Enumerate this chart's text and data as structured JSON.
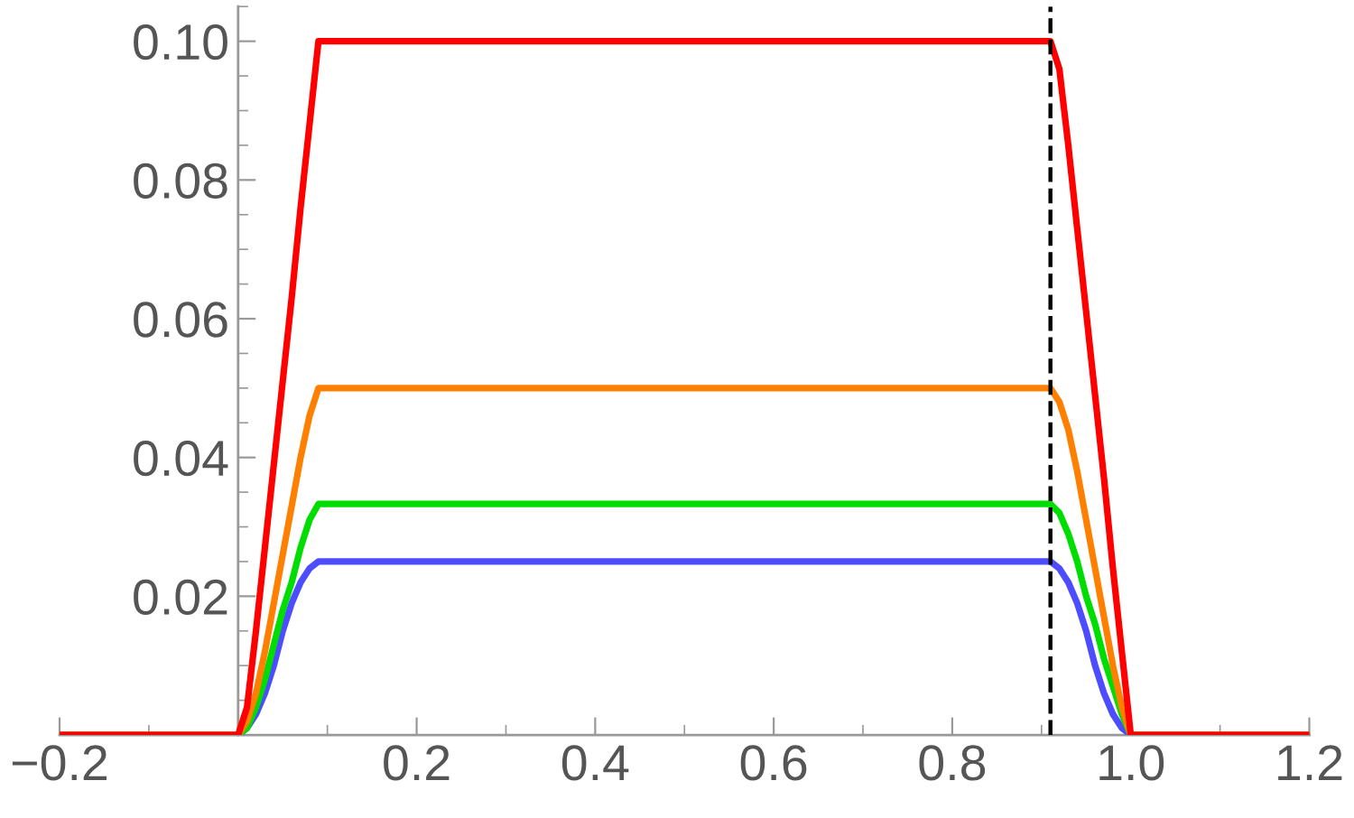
{
  "chart_data": {
    "type": "line",
    "x": [
      -0.2,
      0,
      0.01,
      0.02,
      0.03,
      0.04,
      0.05,
      0.06,
      0.07,
      0.08,
      0.09,
      0.91,
      0.92,
      0.93,
      0.94,
      0.95,
      0.96,
      0.97,
      0.98,
      0.99,
      1.0,
      1.2
    ],
    "series": [
      {
        "color": "#4d4dff",
        "values": [
          0,
          0,
          0.001,
          0.003,
          0.006,
          0.01,
          0.015,
          0.019,
          0.022,
          0.024,
          0.025,
          0.025,
          0.024,
          0.022,
          0.019,
          0.015,
          0.01,
          0.006,
          0.003,
          0.001,
          0,
          0
        ]
      },
      {
        "color": "#00dd00",
        "values": [
          0,
          0,
          0.001,
          0.004,
          0.008,
          0.013,
          0.018,
          0.022,
          0.027,
          0.031,
          0.0333,
          0.0333,
          0.032,
          0.029,
          0.025,
          0.02,
          0.016,
          0.011,
          0.007,
          0.003,
          0,
          0
        ]
      },
      {
        "color": "#ff8000",
        "values": [
          0,
          0,
          0.002,
          0.006,
          0.012,
          0.019,
          0.026,
          0.033,
          0.04,
          0.046,
          0.05,
          0.05,
          0.048,
          0.044,
          0.038,
          0.031,
          0.024,
          0.017,
          0.01,
          0.004,
          0,
          0
        ]
      },
      {
        "color": "#ff0000",
        "values": [
          0,
          0,
          0.004,
          0.015,
          0.027,
          0.039,
          0.051,
          0.063,
          0.076,
          0.088,
          0.1,
          0.1,
          0.096,
          0.085,
          0.073,
          0.061,
          0.049,
          0.037,
          0.024,
          0.012,
          0,
          0
        ]
      }
    ],
    "xlim": [
      -0.2,
      1.2
    ],
    "ylim": [
      0,
      0.105
    ],
    "xticks": [
      {
        "value": -0.2,
        "label": "−0.2"
      },
      0.2,
      0.4,
      0.6,
      0.8,
      {
        "value": 1,
        "label": "1.0"
      },
      1.2
    ],
    "yticks": [
      0.02,
      0.04,
      0.06,
      {
        "value": 0.1,
        "label": "0.10"
      },
      0.08
    ],
    "ref_lines": [
      {
        "axis": "x",
        "value": 0.91,
        "color": "#000000",
        "line_style": "dashed"
      }
    ],
    "grid": false,
    "legend": false,
    "marker": "none",
    "line_style": "solid"
  }
}
